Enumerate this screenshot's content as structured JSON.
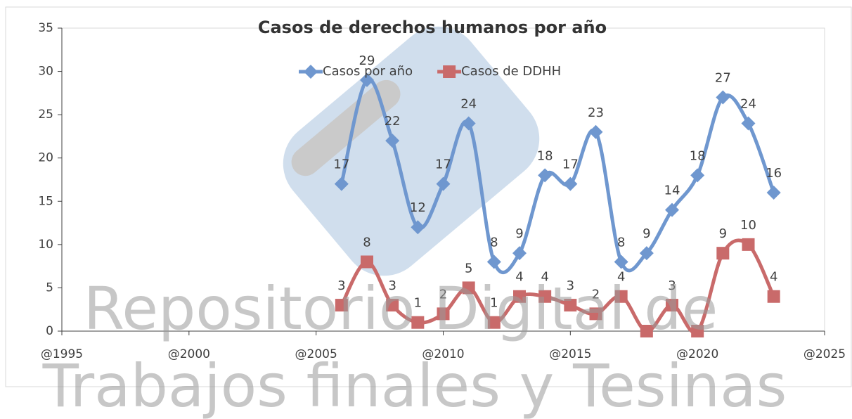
{
  "chart_data": {
    "type": "line",
    "title": "Casos de derechos humanos por año",
    "x": [
      2006,
      2007,
      2008,
      2009,
      2010,
      2011,
      2012,
      2013,
      2014,
      2015,
      2016,
      2017,
      2018,
      2019,
      2020,
      2021,
      2022,
      2023
    ],
    "series": [
      {
        "name": "Casos por año",
        "color": "#6f97cf",
        "marker": "diamond",
        "values": [
          17,
          29,
          22,
          12,
          17,
          24,
          8,
          9,
          18,
          17,
          23,
          8,
          9,
          14,
          18,
          27,
          24,
          16
        ]
      },
      {
        "name": "Casos de DDHH",
        "color": "#c96a6a",
        "marker": "square",
        "values": [
          3,
          8,
          3,
          1,
          2,
          5,
          1,
          4,
          4,
          3,
          2,
          4,
          0,
          3,
          0,
          9,
          10,
          4
        ],
        "value_labels": [
          "3",
          "8",
          "3",
          "1",
          "2",
          "5",
          "1",
          "4",
          "4",
          "3",
          "2",
          "4",
          null,
          "3",
          null,
          "9",
          "10",
          "4"
        ]
      }
    ],
    "xlim": [
      1995,
      2025
    ],
    "xticks": [
      {
        "value": 1995,
        "label": "@1995"
      },
      {
        "value": 2000,
        "label": "@2000"
      },
      {
        "value": 2005,
        "label": "@2005"
      },
      {
        "value": 2010,
        "label": "@2010"
      },
      {
        "value": 2015,
        "label": "@2015"
      },
      {
        "value": 2020,
        "label": "@2020"
      },
      {
        "value": 2025,
        "label": "@2025"
      }
    ],
    "ylim": [
      0,
      35
    ],
    "yticks": [
      0,
      5,
      10,
      15,
      20,
      25,
      30,
      35
    ],
    "legend": "top",
    "smooth": true,
    "watermark": [
      "Repositorio Digital de",
      "Trabajos finales y Tesinas"
    ]
  }
}
